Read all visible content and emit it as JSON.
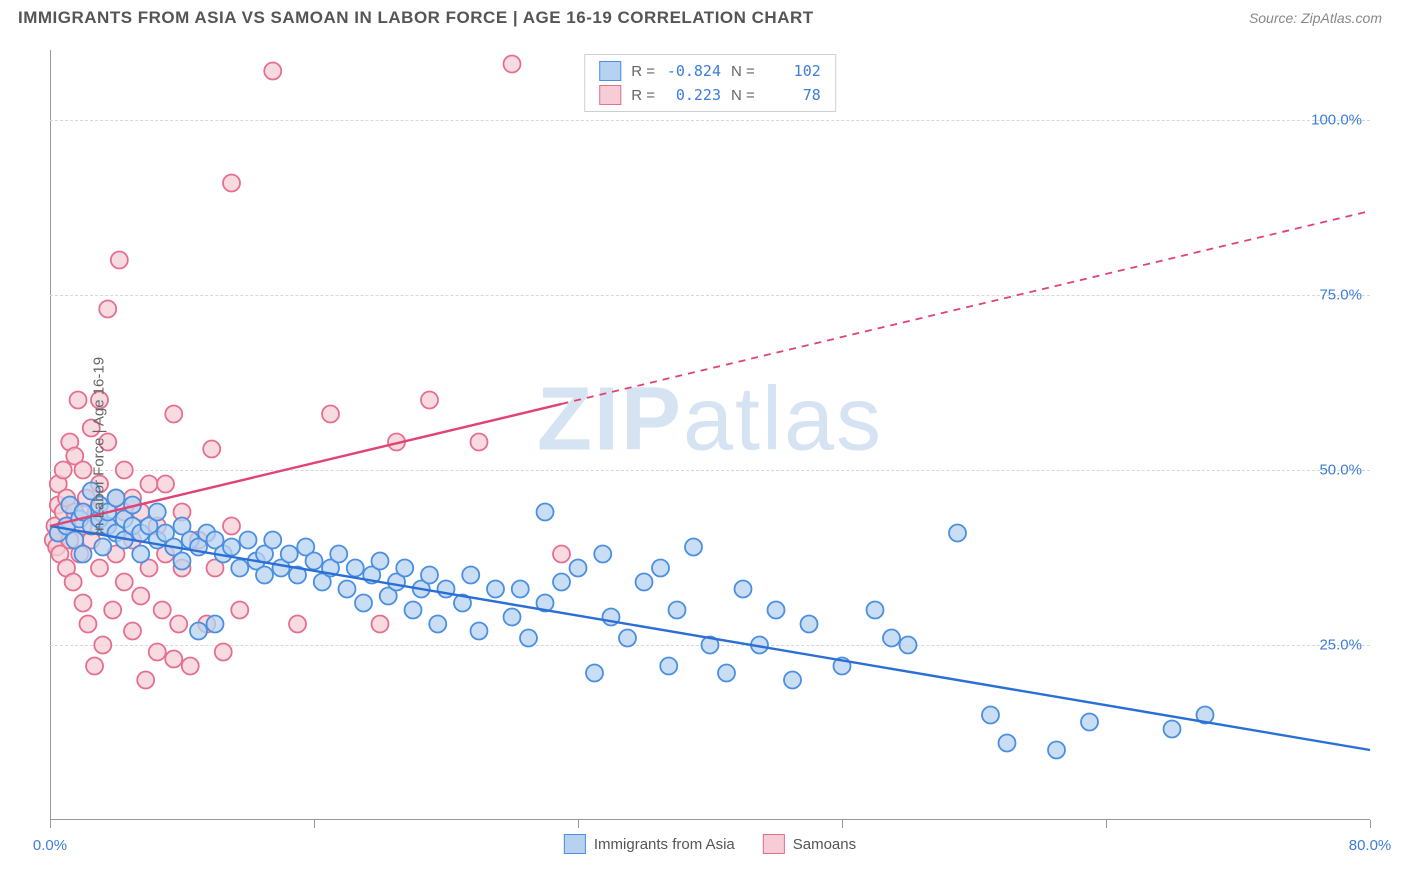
{
  "title": "IMMIGRANTS FROM ASIA VS SAMOAN IN LABOR FORCE | AGE 16-19 CORRELATION CHART",
  "source": "Source: ZipAtlas.com",
  "watermark_strong": "ZIP",
  "watermark_light": "atlas",
  "y_axis_label": "In Labor Force | Age 16-19",
  "chart": {
    "type": "scatter-with-regression",
    "background_color": "#ffffff",
    "grid_color": "#d8d8d8",
    "axis_color": "#999999",
    "xlim": [
      0,
      80
    ],
    "ylim": [
      0,
      110
    ],
    "x_ticks": [
      0,
      16,
      32,
      48,
      64,
      80
    ],
    "x_tick_labels": {
      "0": "0.0%",
      "80": "80.0%"
    },
    "y_ticks": [
      25,
      50,
      75,
      100
    ],
    "y_tick_labels": {
      "25": "25.0%",
      "50": "50.0%",
      "75": "75.0%",
      "100": "100.0%"
    },
    "y_tick_color": "#3b7dd8",
    "x_tick_color": "#3b7dd8",
    "marker_radius": 8.5,
    "marker_stroke_width": 1.8,
    "line_width": 2.4,
    "series": [
      {
        "name": "Immigrants from Asia",
        "fill_color": "#b7d2f0",
        "stroke_color": "#4a8fe0",
        "line_color": "#2a6fd6",
        "R": "-0.824",
        "N": "102",
        "regression": {
          "x1": 0,
          "y1": 42,
          "x2": 80,
          "y2": 10,
          "solid_until_x": 80
        },
        "points": [
          [
            0.5,
            41
          ],
          [
            1,
            42
          ],
          [
            1.2,
            45
          ],
          [
            1.5,
            40
          ],
          [
            1.8,
            43
          ],
          [
            2,
            44
          ],
          [
            2,
            38
          ],
          [
            2.5,
            42
          ],
          [
            2.5,
            47
          ],
          [
            3,
            43
          ],
          [
            3,
            45
          ],
          [
            3.2,
            39
          ],
          [
            3.5,
            42
          ],
          [
            3.5,
            44
          ],
          [
            4,
            41
          ],
          [
            4,
            46
          ],
          [
            4.5,
            40
          ],
          [
            4.5,
            43
          ],
          [
            5,
            42
          ],
          [
            5,
            45
          ],
          [
            5.5,
            41
          ],
          [
            5.5,
            38
          ],
          [
            6,
            42
          ],
          [
            6.5,
            44
          ],
          [
            6.5,
            40
          ],
          [
            7,
            41
          ],
          [
            7.5,
            39
          ],
          [
            8,
            42
          ],
          [
            8,
            37
          ],
          [
            8.5,
            40
          ],
          [
            9,
            27
          ],
          [
            9,
            39
          ],
          [
            9.5,
            41
          ],
          [
            10,
            28
          ],
          [
            10,
            40
          ],
          [
            10.5,
            38
          ],
          [
            11,
            39
          ],
          [
            11.5,
            36
          ],
          [
            12,
            40
          ],
          [
            12.5,
            37
          ],
          [
            13,
            38
          ],
          [
            13,
            35
          ],
          [
            13.5,
            40
          ],
          [
            14,
            36
          ],
          [
            14.5,
            38
          ],
          [
            15,
            35
          ],
          [
            15.5,
            39
          ],
          [
            16,
            37
          ],
          [
            16.5,
            34
          ],
          [
            17,
            36
          ],
          [
            17.5,
            38
          ],
          [
            18,
            33
          ],
          [
            18.5,
            36
          ],
          [
            19,
            31
          ],
          [
            19.5,
            35
          ],
          [
            20,
            37
          ],
          [
            20.5,
            32
          ],
          [
            21,
            34
          ],
          [
            21.5,
            36
          ],
          [
            22,
            30
          ],
          [
            22.5,
            33
          ],
          [
            23,
            35
          ],
          [
            23.5,
            28
          ],
          [
            24,
            33
          ],
          [
            25,
            31
          ],
          [
            25.5,
            35
          ],
          [
            26,
            27
          ],
          [
            27,
            33
          ],
          [
            28,
            29
          ],
          [
            28.5,
            33
          ],
          [
            29,
            26
          ],
          [
            30,
            44
          ],
          [
            30,
            31
          ],
          [
            31,
            34
          ],
          [
            32,
            36
          ],
          [
            33,
            21
          ],
          [
            33.5,
            38
          ],
          [
            34,
            29
          ],
          [
            35,
            26
          ],
          [
            36,
            34
          ],
          [
            37,
            36
          ],
          [
            37.5,
            22
          ],
          [
            38,
            30
          ],
          [
            39,
            39
          ],
          [
            40,
            25
          ],
          [
            41,
            21
          ],
          [
            42,
            33
          ],
          [
            43,
            25
          ],
          [
            44,
            30
          ],
          [
            45,
            20
          ],
          [
            46,
            28
          ],
          [
            48,
            22
          ],
          [
            50,
            30
          ],
          [
            51,
            26
          ],
          [
            52,
            25
          ],
          [
            55,
            41
          ],
          [
            57,
            15
          ],
          [
            58,
            11
          ],
          [
            61,
            10
          ],
          [
            63,
            14
          ],
          [
            68,
            13
          ],
          [
            70,
            15
          ]
        ]
      },
      {
        "name": "Samoans",
        "fill_color": "#f6cdd7",
        "stroke_color": "#e56f90",
        "line_color": "#e04374",
        "R": "0.223",
        "N": "78",
        "regression": {
          "x1": 0,
          "y1": 42,
          "x2": 80,
          "y2": 87,
          "solid_until_x": 31
        },
        "points": [
          [
            0.2,
            40
          ],
          [
            0.3,
            42
          ],
          [
            0.4,
            39
          ],
          [
            0.5,
            41
          ],
          [
            0.5,
            45
          ],
          [
            0.5,
            48
          ],
          [
            0.6,
            38
          ],
          [
            0.8,
            44
          ],
          [
            0.8,
            50
          ],
          [
            1,
            36
          ],
          [
            1,
            42
          ],
          [
            1,
            46
          ],
          [
            1.2,
            40
          ],
          [
            1.2,
            54
          ],
          [
            1.4,
            34
          ],
          [
            1.5,
            44
          ],
          [
            1.5,
            52
          ],
          [
            1.7,
            60
          ],
          [
            1.8,
            38
          ],
          [
            2,
            42
          ],
          [
            2,
            50
          ],
          [
            2,
            31
          ],
          [
            2.2,
            46
          ],
          [
            2.3,
            28
          ],
          [
            2.5,
            40
          ],
          [
            2.5,
            56
          ],
          [
            2.7,
            22
          ],
          [
            2.8,
            44
          ],
          [
            3,
            36
          ],
          [
            3,
            48
          ],
          [
            3,
            60
          ],
          [
            3.2,
            25
          ],
          [
            3.5,
            42
          ],
          [
            3.5,
            54
          ],
          [
            3.5,
            73
          ],
          [
            3.8,
            30
          ],
          [
            4,
            38
          ],
          [
            4,
            46
          ],
          [
            4.2,
            80
          ],
          [
            4.5,
            34
          ],
          [
            4.5,
            44
          ],
          [
            4.5,
            50
          ],
          [
            5,
            27
          ],
          [
            5,
            40
          ],
          [
            5,
            46
          ],
          [
            5.5,
            32
          ],
          [
            5.5,
            44
          ],
          [
            5.8,
            20
          ],
          [
            6,
            36
          ],
          [
            6,
            48
          ],
          [
            6.5,
            24
          ],
          [
            6.5,
            42
          ],
          [
            6.8,
            30
          ],
          [
            7,
            38
          ],
          [
            7,
            48
          ],
          [
            7.5,
            23
          ],
          [
            7.5,
            58
          ],
          [
            7.8,
            28
          ],
          [
            8,
            36
          ],
          [
            8,
            44
          ],
          [
            8.5,
            22
          ],
          [
            9,
            40
          ],
          [
            9.5,
            28
          ],
          [
            9.8,
            53
          ],
          [
            10,
            36
          ],
          [
            10.5,
            24
          ],
          [
            11,
            42
          ],
          [
            11,
            91
          ],
          [
            11.5,
            30
          ],
          [
            13.5,
            107
          ],
          [
            15,
            28
          ],
          [
            17,
            58
          ],
          [
            20,
            28
          ],
          [
            21,
            54
          ],
          [
            23,
            60
          ],
          [
            26,
            54
          ],
          [
            28,
            108
          ],
          [
            31,
            38
          ]
        ]
      }
    ]
  }
}
